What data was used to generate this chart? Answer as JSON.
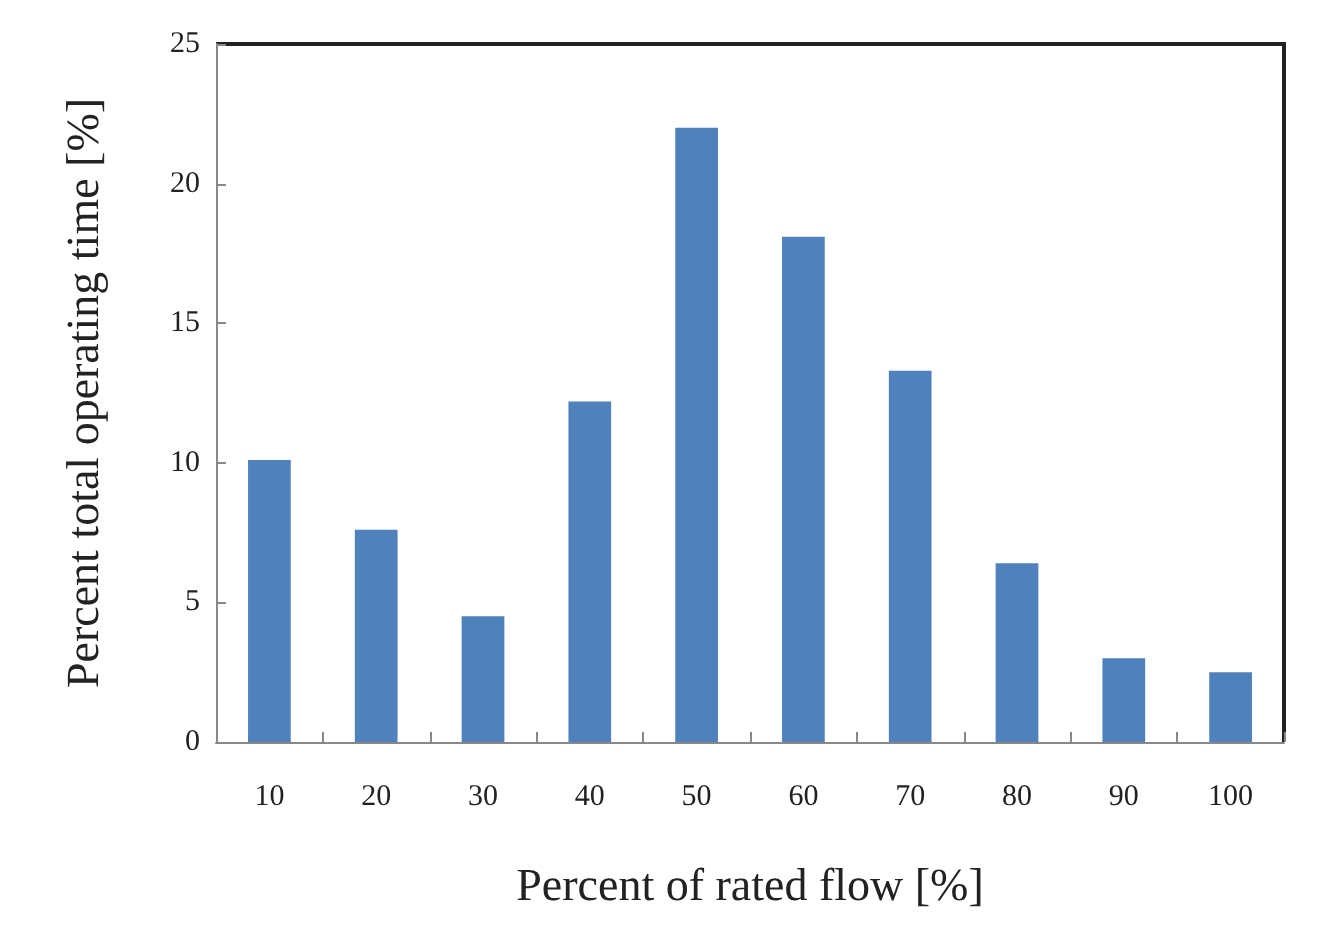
{
  "chart_data": {
    "type": "bar",
    "xlabel": "Percent of rated flow [%]",
    "ylabel": "Percent total operating time [%]",
    "categories": [
      "10",
      "20",
      "30",
      "40",
      "50",
      "60",
      "70",
      "80",
      "90",
      "100"
    ],
    "values": [
      10.1,
      7.6,
      4.5,
      12.2,
      22.0,
      18.1,
      13.3,
      6.4,
      3.0,
      2.5
    ],
    "color": "#4f81bd",
    "ylim": [
      0,
      25
    ],
    "yticks": [
      0,
      5,
      10,
      15,
      20,
      25
    ],
    "grid": false
  }
}
